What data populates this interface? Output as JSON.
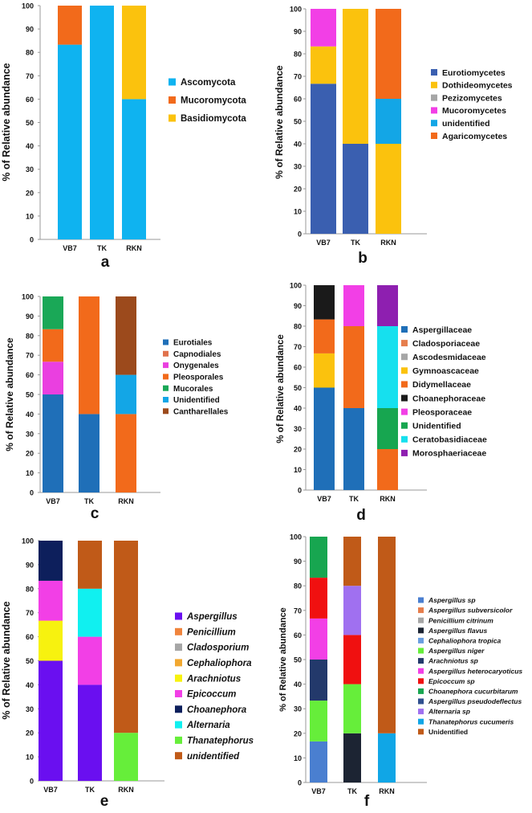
{
  "figure": {
    "panel_count": 6
  },
  "chart_data": [
    {
      "panel": "a",
      "type": "bar",
      "stacked": true,
      "ylabel": "% of Relative abundance",
      "ylim": [
        0,
        100
      ],
      "yticks": [
        0,
        10,
        20,
        30,
        40,
        50,
        60,
        70,
        80,
        90,
        100
      ],
      "categories": [
        "VB7",
        "TK",
        "RKN"
      ],
      "series": [
        {
          "name": "Ascomycota",
          "color": "#0fb3f0",
          "values": [
            83.3,
            100,
            60
          ]
        },
        {
          "name": "Mucoromycota",
          "color": "#f26a1b",
          "values": [
            16.7,
            0,
            0
          ]
        },
        {
          "name": "Basidiomycota",
          "color": "#fbc20d",
          "values": [
            0,
            0,
            40
          ]
        }
      ],
      "legend_items": [
        "Ascomycota",
        "Mucoromycota",
        "Basidiomycota"
      ],
      "legend_italic": false
    },
    {
      "panel": "b",
      "type": "bar",
      "stacked": true,
      "ylabel": "% of Relative abundance",
      "ylim": [
        0,
        100
      ],
      "yticks": [
        0,
        10,
        20,
        30,
        40,
        50,
        60,
        70,
        80,
        90,
        100
      ],
      "categories": [
        "VB7",
        "TK",
        "RKN"
      ],
      "series": [
        {
          "name": "Eurotiomycetes",
          "color": "#3a5fb0",
          "values": [
            66.7,
            40,
            0
          ]
        },
        {
          "name": "Dothideomycetes",
          "color": "#fbc20d",
          "values": [
            16.6,
            60,
            40
          ]
        },
        {
          "name": "Pezizomycetes",
          "color": "#a6a6a6",
          "values": [
            0,
            0,
            0
          ]
        },
        {
          "name": "Mucoromycetes",
          "color": "#f23fe6",
          "values": [
            16.7,
            0,
            0
          ]
        },
        {
          "name": "unidentified",
          "color": "#13a6e6",
          "values": [
            0,
            0,
            20
          ]
        },
        {
          "name": "Agaricomycetes",
          "color": "#f26a1b",
          "values": [
            0,
            0,
            40
          ]
        }
      ],
      "legend_items": [
        "Eurotiomycetes",
        "Dothideomycetes",
        "Pezizomycetes",
        "Mucoromycetes",
        "unidentified",
        "Agaricomycetes"
      ],
      "legend_italic": false
    },
    {
      "panel": "c",
      "type": "bar",
      "stacked": true,
      "ylabel": "% of Relative abundance",
      "ylim": [
        0,
        100
      ],
      "yticks": [
        0,
        10,
        20,
        30,
        40,
        50,
        60,
        70,
        80,
        90,
        100
      ],
      "categories": [
        "VB7",
        "TK",
        "RKN"
      ],
      "series": [
        {
          "name": "Eurotiales",
          "color": "#1f6fb8",
          "values": [
            50,
            40,
            0
          ]
        },
        {
          "name": "Capnodiales",
          "color": "#e0724c",
          "values": [
            0,
            0,
            0
          ]
        },
        {
          "name": "Onygenales",
          "color": "#ea3fe0",
          "values": [
            16.7,
            0,
            0
          ]
        },
        {
          "name": "Pleosporales",
          "color": "#f26a1b",
          "values": [
            16.6,
            60,
            40
          ]
        },
        {
          "name": "Mucorales",
          "color": "#1aa857",
          "values": [
            16.7,
            0,
            0
          ]
        },
        {
          "name": "Unidentified",
          "color": "#13a6e6",
          "values": [
            0,
            0,
            20
          ]
        },
        {
          "name": "Cantharellales",
          "color": "#9c4a1c",
          "values": [
            0,
            0,
            40
          ]
        }
      ],
      "legend_items": [
        "Eurotiales",
        "Capnodiales",
        "Onygenales",
        "Pleosporales",
        "Mucorales",
        "Unidentified",
        "Cantharellales"
      ],
      "legend_italic": false
    },
    {
      "panel": "d",
      "type": "bar",
      "stacked": true,
      "ylabel": "% of Relative abundance",
      "ylim": [
        0,
        100
      ],
      "yticks": [
        0,
        10,
        20,
        30,
        40,
        50,
        60,
        70,
        80,
        90,
        100
      ],
      "categories": [
        "VB7",
        "TK",
        "RKN"
      ],
      "series": [
        {
          "name": "Aspergillaceae",
          "color": "#1f6fb8",
          "values": [
            50,
            40,
            0
          ]
        },
        {
          "name": "Cladosporiaceae",
          "color": "#e67e4d",
          "values": [
            0,
            0,
            0
          ]
        },
        {
          "name": "Ascodesmidaceae",
          "color": "#a6a6a6",
          "values": [
            0,
            0,
            0
          ]
        },
        {
          "name": "Gymnoascaceae",
          "color": "#fbc20d",
          "values": [
            16.7,
            0,
            0
          ]
        },
        {
          "name": "Didymellaceae",
          "color": "#f26a1b",
          "values": [
            16.6,
            40,
            20
          ]
        },
        {
          "name": "Choanephoraceae",
          "color": "#1a1a1a",
          "values": [
            16.7,
            0,
            0
          ]
        },
        {
          "name": "Pleosporaceae",
          "color": "#f23fe6",
          "values": [
            0,
            20,
            0
          ]
        },
        {
          "name": "Unidentified",
          "color": "#17a650",
          "values": [
            0,
            0,
            20
          ]
        },
        {
          "name": "Ceratobasidiaceae",
          "color": "#16e0ee",
          "values": [
            0,
            0,
            40
          ]
        },
        {
          "name": "Morosphaeriaceae",
          "color": "#8e1fb0",
          "values": [
            0,
            0,
            20
          ]
        }
      ],
      "legend_items": [
        "Aspergillaceae",
        "Cladosporiaceae",
        "Ascodesmidaceae",
        "Gymnoascaceae",
        "Didymellaceae",
        "Choanephoraceae",
        "Pleosporaceae",
        "Unidentified",
        "Ceratobasidiaceae",
        "Morosphaeriaceae"
      ],
      "legend_italic": false
    },
    {
      "panel": "e",
      "type": "bar",
      "stacked": true,
      "ylabel": "% of Relative abundance",
      "ylim": [
        0,
        100
      ],
      "yticks": [
        0,
        10,
        20,
        30,
        40,
        50,
        60,
        70,
        80,
        90,
        100
      ],
      "categories": [
        "VB7",
        "TK",
        "RKN"
      ],
      "series": [
        {
          "name": "Aspergillus",
          "color": "#6a0ff0",
          "values": [
            50,
            40,
            0
          ]
        },
        {
          "name": "Penicillium",
          "color": "#f0843c",
          "values": [
            0,
            0,
            0
          ]
        },
        {
          "name": "Cladosporium",
          "color": "#a6a6a6",
          "values": [
            0,
            0,
            0
          ]
        },
        {
          "name": "Cephaliophora",
          "color": "#f2a830",
          "values": [
            0,
            0,
            0
          ]
        },
        {
          "name": "Arachniotus",
          "color": "#f7f20f",
          "values": [
            16.7,
            0,
            0
          ]
        },
        {
          "name": "Epicoccum",
          "color": "#f23fe6",
          "values": [
            16.6,
            20,
            0
          ]
        },
        {
          "name": "Choanephora",
          "color": "#0d1f5c",
          "values": [
            16.7,
            0,
            0
          ]
        },
        {
          "name": "Alternaria",
          "color": "#10f0f0",
          "values": [
            0,
            20,
            0
          ]
        },
        {
          "name": "Thanatephorus",
          "color": "#66ee3a",
          "values": [
            0,
            0,
            20
          ]
        },
        {
          "name": "unidentified",
          "color": "#c05a18",
          "values": [
            0,
            20,
            80
          ]
        }
      ],
      "legend_items": [
        "Aspergillus",
        "Penicillium",
        "Cladosporium",
        "Cephaliophora",
        "Arachniotus",
        "Epicoccum",
        "Choanephora",
        "Alternaria",
        "Thanatephorus",
        "unidentified"
      ],
      "legend_italic": true
    },
    {
      "panel": "f",
      "type": "bar",
      "stacked": true,
      "ylabel": "% of Relative abundance",
      "ylim": [
        0,
        100
      ],
      "yticks": [
        0,
        10,
        20,
        30,
        40,
        50,
        60,
        70,
        80,
        90,
        100
      ],
      "categories": [
        "VB7",
        "TK",
        "RKN"
      ],
      "series": [
        {
          "name": "Aspergillus sp",
          "color": "#4a7fd0",
          "values": [
            16.7,
            0,
            0
          ]
        },
        {
          "name": "Aspergillus subversicolor",
          "color": "#e67e4d",
          "values": [
            0,
            0,
            0
          ]
        },
        {
          "name": "Penicillium citrinum",
          "color": "#a6a6a6",
          "values": [
            0,
            0,
            0
          ]
        },
        {
          "name": "Aspergillus flavus",
          "color": "#1c2433",
          "values": [
            0,
            20,
            0
          ]
        },
        {
          "name": "Cephaliophora tropica",
          "color": "#6a9ee0",
          "values": [
            0,
            0,
            0
          ]
        },
        {
          "name": "Aspergillus niger",
          "color": "#66ee3a",
          "values": [
            16.6,
            20,
            0
          ]
        },
        {
          "name": "Arachniotus sp",
          "color": "#23396b",
          "values": [
            16.7,
            0,
            0
          ]
        },
        {
          "name": "Aspergillus heterocaryoticus",
          "color": "#f23fe6",
          "values": [
            16.7,
            0,
            0
          ]
        },
        {
          "name": "Epicoccum sp",
          "color": "#f01010",
          "values": [
            16.6,
            20,
            0
          ]
        },
        {
          "name": "Choanephora cucurbitarum",
          "color": "#17a650",
          "values": [
            16.7,
            0,
            0
          ]
        },
        {
          "name": "Aspergillus pseudodeflectus",
          "color": "#2f4f8f",
          "values": [
            0,
            0,
            0
          ]
        },
        {
          "name": "Alternaria sp",
          "color": "#a070f0",
          "values": [
            0,
            20,
            0
          ]
        },
        {
          "name": "Thanatephorus cucumeris",
          "color": "#10a6e6",
          "values": [
            0,
            0,
            20
          ]
        },
        {
          "name": "Unidentified",
          "color": "#c05a18",
          "values": [
            0,
            20,
            80
          ]
        }
      ],
      "legend_items": [
        "Aspergillus sp",
        "Aspergillus subversicolor",
        "Penicillium citrinum",
        "Aspergillus flavus",
        "Cephaliophora tropica",
        "Aspergillus niger",
        "Arachniotus sp",
        "Aspergillus heterocaryoticus",
        "Epicoccum sp",
        "Choanephora cucurbitarum",
        "Aspergillus pseudodeflectus",
        "Alternaria sp",
        "Thanatephorus cucumeris",
        "Unidentified"
      ],
      "legend_italic_except_last": true
    }
  ]
}
